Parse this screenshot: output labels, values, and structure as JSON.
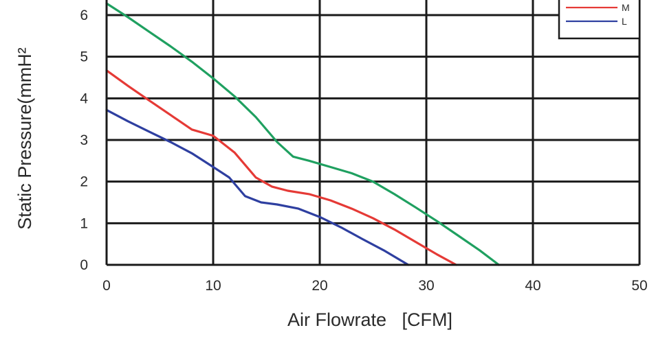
{
  "chart_data": {
    "type": "line",
    "xlabel": "Air Flowrate   [CFM]",
    "ylabel": "Static Pressure(mmH²",
    "xlim": [
      0,
      50
    ],
    "ylim": [
      0,
      6.5
    ],
    "x_ticks": [
      "0",
      "10",
      "20",
      "30",
      "40",
      "50"
    ],
    "y_ticks": [
      "0",
      "1",
      "2",
      "3",
      "4",
      "5",
      "6"
    ],
    "grid": true,
    "legend_position": "top-right",
    "series": [
      {
        "name": "",
        "color": "#1fa060",
        "x": [
          0,
          2,
          4,
          6,
          8,
          10,
          12,
          14,
          16,
          17.5,
          19,
          21,
          23,
          25,
          27,
          29,
          31,
          33,
          35,
          36.8
        ],
        "y": [
          6.28,
          5.95,
          5.6,
          5.25,
          4.88,
          4.48,
          4.05,
          3.55,
          2.95,
          2.6,
          2.5,
          2.35,
          2.2,
          2.0,
          1.7,
          1.38,
          1.05,
          0.7,
          0.35,
          0.0
        ]
      },
      {
        "name": "M",
        "color": "#e53a36",
        "x": [
          0,
          2,
          4,
          6,
          8,
          10,
          12,
          14,
          15.5,
          17,
          19,
          21,
          23,
          25,
          27,
          29,
          31,
          32.8
        ],
        "y": [
          4.67,
          4.3,
          3.95,
          3.6,
          3.25,
          3.1,
          2.7,
          2.1,
          1.88,
          1.78,
          1.7,
          1.55,
          1.35,
          1.12,
          0.85,
          0.55,
          0.25,
          0.0
        ]
      },
      {
        "name": "L",
        "color": "#2e3fa0",
        "x": [
          0,
          2,
          4,
          6,
          8,
          10,
          11.5,
          13,
          14.5,
          16,
          18,
          20,
          22,
          24,
          26,
          28.3
        ],
        "y": [
          3.72,
          3.45,
          3.2,
          2.95,
          2.68,
          2.35,
          2.1,
          1.65,
          1.5,
          1.45,
          1.35,
          1.15,
          0.9,
          0.62,
          0.35,
          0.0
        ]
      }
    ]
  }
}
